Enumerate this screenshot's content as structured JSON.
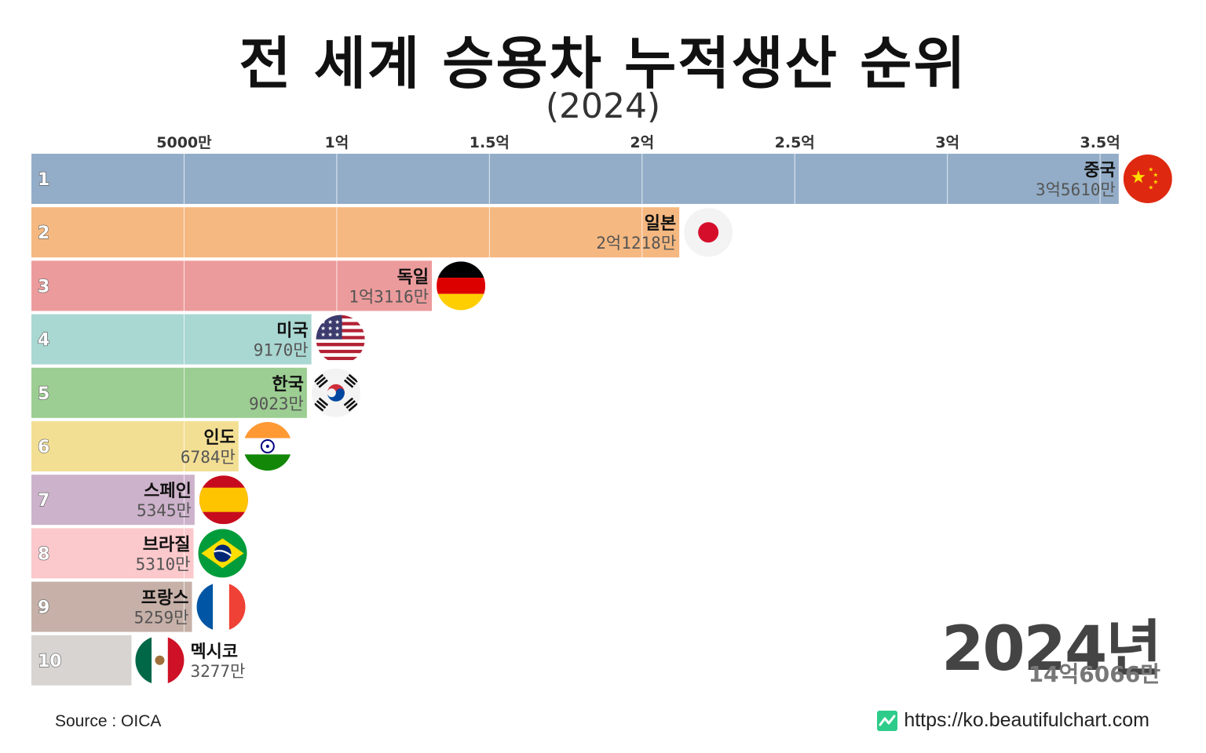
{
  "title": "전 세계 승용차 누적생산 순위",
  "subtitle": "(2024)",
  "year_label": "2024년",
  "total_label": "14억6066만",
  "source": "Source : OICA",
  "website": "https://ko.beautifulchart.com",
  "chart_data": {
    "type": "bar",
    "orientation": "horizontal",
    "title": "전 세계 승용차 누적생산 순위",
    "subtitle": "(2024)",
    "unit": "만",
    "xlim": [
      0,
      36000
    ],
    "x_ticks": [
      {
        "value": 5000,
        "label": "5000만"
      },
      {
        "value": 10000,
        "label": "1억"
      },
      {
        "value": 15000,
        "label": "1.5억"
      },
      {
        "value": 20000,
        "label": "2억"
      },
      {
        "value": 25000,
        "label": "2.5억"
      },
      {
        "value": 30000,
        "label": "3억"
      },
      {
        "value": 35000,
        "label": "3.5억"
      }
    ],
    "grid": true,
    "bars": [
      {
        "rank": "1",
        "country": "중국",
        "value": 35610,
        "value_label": "3억5610만",
        "color": "#93adc8",
        "flag": "china"
      },
      {
        "rank": "2",
        "country": "일본",
        "value": 21218,
        "value_label": "2억1218만",
        "color": "#f5b880",
        "flag": "japan"
      },
      {
        "rank": "3",
        "country": "독일",
        "value": 13116,
        "value_label": "1억3116만",
        "color": "#ec9b9c",
        "flag": "germany"
      },
      {
        "rank": "4",
        "country": "미국",
        "value": 9170,
        "value_label": "9170만",
        "color": "#a9d7d2",
        "flag": "usa"
      },
      {
        "rank": "5",
        "country": "한국",
        "value": 9023,
        "value_label": "9023만",
        "color": "#9ccd92",
        "flag": "korea"
      },
      {
        "rank": "6",
        "country": "인도",
        "value": 6784,
        "value_label": "6784만",
        "color": "#f3df94",
        "flag": "india"
      },
      {
        "rank": "7",
        "country": "스페인",
        "value": 5345,
        "value_label": "5345만",
        "color": "#cdb2cb",
        "flag": "spain"
      },
      {
        "rank": "8",
        "country": "브라질",
        "value": 5310,
        "value_label": "5310만",
        "color": "#fbc8cc",
        "flag": "brazil"
      },
      {
        "rank": "9",
        "country": "프랑스",
        "value": 5259,
        "value_label": "5259만",
        "color": "#c6b0a7",
        "flag": "france"
      },
      {
        "rank": "10",
        "country": "멕시코",
        "value": 3277,
        "value_label": "3277만",
        "color": "#d8d4d2",
        "flag": "mexico"
      }
    ]
  }
}
